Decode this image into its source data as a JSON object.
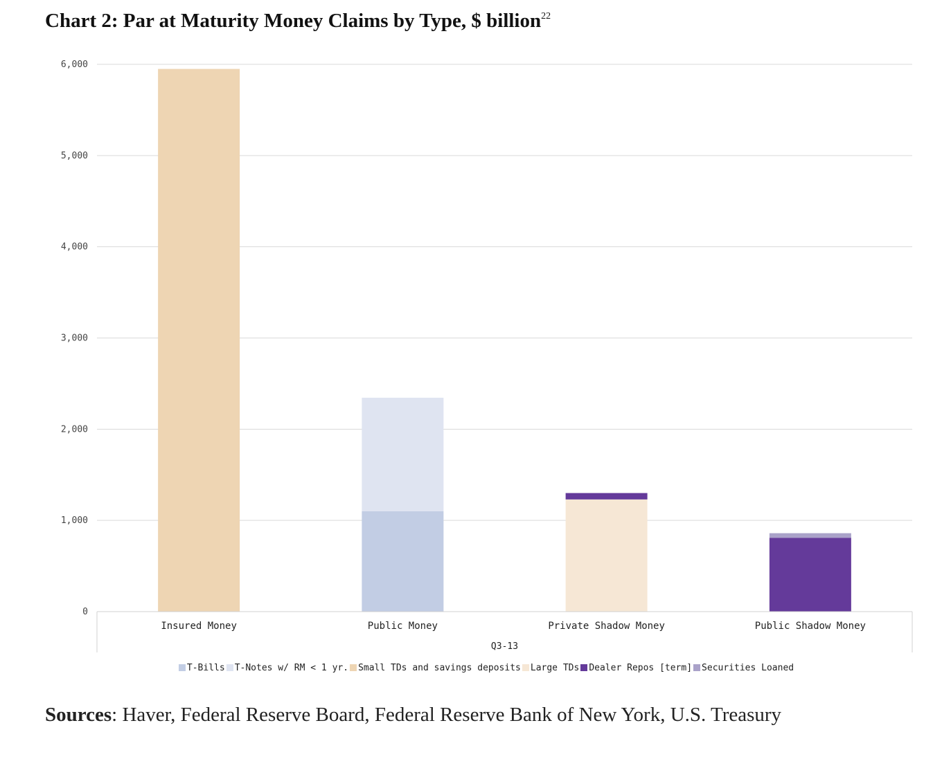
{
  "title": "Chart 2: Par at Maturity Money Claims by Type, $ billion",
  "title_footnote": "22",
  "sources_label": "Sources",
  "sources_text": ": Haver, Federal Reserve Board, Federal Reserve Bank of New York, U.S. Treasury",
  "chart_data": {
    "type": "bar",
    "stacked": true,
    "categories": [
      "Insured Money",
      "Public Money",
      "Private Shadow Money",
      "Public Shadow Money"
    ],
    "group_label": "Q3-13",
    "ylim": [
      0,
      6000
    ],
    "yticks": [
      0,
      1000,
      2000,
      3000,
      4000,
      5000,
      6000
    ],
    "ytick_labels": [
      "0",
      "1,000",
      "2,000",
      "3,000",
      "4,000",
      "5,000",
      "6,000"
    ],
    "grid": true,
    "legend_position": "bottom",
    "series": [
      {
        "name": "T-Bills",
        "color": "#c2cde4",
        "values": [
          0,
          1100,
          0,
          0
        ]
      },
      {
        "name": "T-Notes w/ RM < 1 yr.",
        "color": "#dfe4f1",
        "values": [
          0,
          1245,
          0,
          0
        ]
      },
      {
        "name": "Small TDs and savings deposits",
        "color": "#eed5b3",
        "values": [
          5950,
          0,
          0,
          0
        ]
      },
      {
        "name": "Large TDs",
        "color": "#f6e7d5",
        "values": [
          0,
          0,
          1230,
          0
        ]
      },
      {
        "name": "Dealer Repos [term]",
        "color": "#643a9a",
        "values": [
          0,
          0,
          70,
          810
        ]
      },
      {
        "name": "Securities Loaned",
        "color": "#aaa2c9",
        "values": [
          0,
          0,
          0,
          50
        ]
      }
    ]
  }
}
